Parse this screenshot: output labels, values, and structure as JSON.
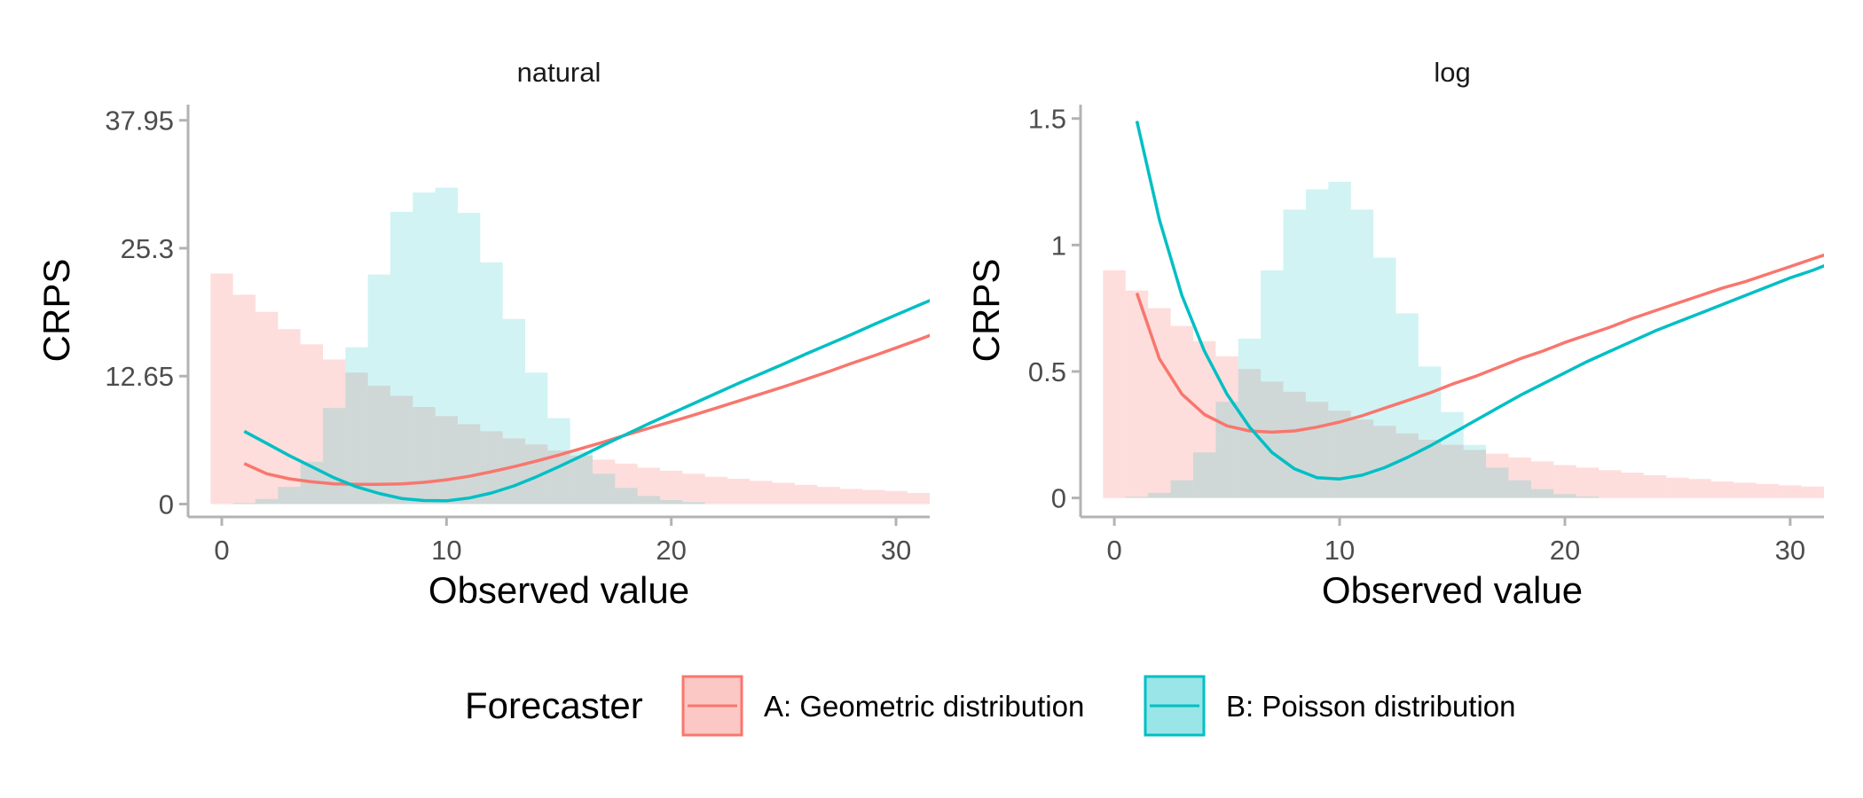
{
  "chart_data": [
    {
      "type": "line",
      "title": "natural",
      "xlabel": "Observed value",
      "ylabel": "CRPS",
      "xlim": [
        -1.5,
        31.5
      ],
      "ylim": [
        -1.27,
        39.5
      ],
      "xticks": [
        0,
        10,
        20,
        30
      ],
      "yticks": [
        0,
        12.65,
        25.3,
        37.95
      ],
      "ytick_labels": [
        "0",
        "12.65",
        "25.3",
        "37.95"
      ],
      "grid": false,
      "series": [
        {
          "name": "A: Geometric distribution",
          "color": "#F8766D",
          "x": [
            1,
            2,
            3,
            4,
            5,
            6,
            7,
            8,
            9,
            10,
            11,
            12,
            13,
            14,
            15,
            16,
            17,
            18,
            19,
            20,
            21,
            22,
            23,
            24,
            25,
            26,
            27,
            28,
            29,
            30,
            31,
            32
          ],
          "values": [
            4.0,
            3.0,
            2.5,
            2.2,
            2.0,
            1.95,
            1.95,
            2.0,
            2.15,
            2.4,
            2.75,
            3.2,
            3.7,
            4.25,
            4.85,
            5.5,
            6.15,
            6.85,
            7.5,
            8.15,
            8.8,
            9.5,
            10.2,
            10.9,
            11.6,
            12.35,
            13.1,
            13.9,
            14.65,
            15.45,
            16.25,
            17.1
          ]
        },
        {
          "name": "B: Poisson distribution",
          "color": "#00BFC4",
          "x": [
            1,
            2,
            3,
            4,
            5,
            6,
            7,
            8,
            9,
            10,
            11,
            12,
            13,
            14,
            15,
            16,
            17,
            18,
            19,
            20,
            21,
            22,
            23,
            24,
            25,
            26,
            27,
            28,
            29,
            30,
            31,
            32
          ],
          "values": [
            7.2,
            6.0,
            4.8,
            3.7,
            2.6,
            1.7,
            1.05,
            0.55,
            0.35,
            0.33,
            0.6,
            1.1,
            1.8,
            2.7,
            3.7,
            4.75,
            5.85,
            6.9,
            7.95,
            8.95,
            9.95,
            10.95,
            11.95,
            12.9,
            13.85,
            14.85,
            15.8,
            16.75,
            17.75,
            18.7,
            19.65,
            20.6
          ]
        }
      ],
      "histograms": [
        {
          "name": "A: Geometric distribution",
          "color": "#F8766D",
          "x": [
            0,
            1,
            2,
            3,
            4,
            5,
            6,
            7,
            8,
            9,
            10,
            11,
            12,
            13,
            14,
            15,
            16,
            17,
            18,
            19,
            20,
            21,
            22,
            23,
            24,
            25,
            26,
            27,
            28,
            29,
            30,
            31
          ],
          "values": [
            22.8,
            20.7,
            19.0,
            17.3,
            15.8,
            14.3,
            13.0,
            11.7,
            10.7,
            9.6,
            8.7,
            7.9,
            7.2,
            6.5,
            5.9,
            5.3,
            4.8,
            4.4,
            4.0,
            3.6,
            3.3,
            3.0,
            2.7,
            2.5,
            2.3,
            2.1,
            1.9,
            1.7,
            1.5,
            1.4,
            1.3,
            1.1
          ]
        },
        {
          "name": "B: Poisson distribution",
          "color": "#00BFC4",
          "x": [
            0,
            1,
            2,
            3,
            4,
            5,
            6,
            7,
            8,
            9,
            10,
            11,
            12,
            13,
            14,
            15,
            16,
            17,
            18,
            19,
            20,
            21
          ],
          "values": [
            0,
            0.1,
            0.5,
            1.7,
            4.2,
            9.5,
            15.5,
            22.7,
            28.9,
            30.8,
            31.3,
            28.8,
            23.9,
            18.3,
            13.0,
            8.5,
            5.2,
            3.0,
            1.6,
            0.8,
            0.4,
            0.2
          ]
        }
      ]
    },
    {
      "type": "line",
      "title": "log",
      "xlabel": "Observed value",
      "ylabel": "CRPS",
      "xlim": [
        -1.5,
        31.5
      ],
      "ylim": [
        -0.075,
        1.555
      ],
      "xticks": [
        0,
        10,
        20,
        30
      ],
      "yticks": [
        0,
        0.5,
        1,
        1.5
      ],
      "ytick_labels": [
        "0",
        "0.5",
        "1",
        "1.5"
      ],
      "grid": false,
      "series": [
        {
          "name": "A: Geometric distribution",
          "color": "#F8766D",
          "x": [
            1,
            2,
            3,
            4,
            5,
            6,
            7,
            8,
            9,
            10,
            11,
            12,
            13,
            14,
            15,
            16,
            17,
            18,
            19,
            20,
            21,
            22,
            23,
            24,
            25,
            26,
            27,
            28,
            29,
            30,
            31,
            32
          ],
          "values": [
            0.81,
            0.55,
            0.41,
            0.33,
            0.285,
            0.265,
            0.26,
            0.265,
            0.28,
            0.3,
            0.325,
            0.355,
            0.385,
            0.415,
            0.45,
            0.48,
            0.515,
            0.55,
            0.58,
            0.615,
            0.645,
            0.675,
            0.71,
            0.74,
            0.77,
            0.8,
            0.83,
            0.855,
            0.885,
            0.915,
            0.945,
            0.975
          ]
        },
        {
          "name": "B: Poisson distribution",
          "color": "#00BFC4",
          "x": [
            1,
            2,
            3,
            4,
            5,
            6,
            7,
            8,
            9,
            10,
            11,
            12,
            13,
            14,
            15,
            16,
            17,
            18,
            19,
            20,
            21,
            22,
            23,
            24,
            25,
            26,
            27,
            28,
            29,
            30,
            31,
            32
          ],
          "values": [
            1.49,
            1.1,
            0.8,
            0.58,
            0.41,
            0.28,
            0.18,
            0.115,
            0.08,
            0.075,
            0.09,
            0.12,
            0.16,
            0.205,
            0.255,
            0.305,
            0.355,
            0.405,
            0.45,
            0.495,
            0.54,
            0.58,
            0.62,
            0.66,
            0.695,
            0.73,
            0.765,
            0.8,
            0.835,
            0.87,
            0.9,
            0.935
          ]
        }
      ],
      "histograms": [
        {
          "name": "A: Geometric distribution",
          "color": "#F8766D",
          "x": [
            0,
            1,
            2,
            3,
            4,
            5,
            6,
            7,
            8,
            9,
            10,
            11,
            12,
            13,
            14,
            15,
            16,
            17,
            18,
            19,
            20,
            21,
            22,
            23,
            24,
            25,
            26,
            27,
            28,
            29,
            30,
            31
          ],
          "values": [
            0.9,
            0.82,
            0.75,
            0.68,
            0.62,
            0.56,
            0.51,
            0.46,
            0.42,
            0.38,
            0.345,
            0.31,
            0.285,
            0.255,
            0.23,
            0.21,
            0.19,
            0.175,
            0.16,
            0.145,
            0.13,
            0.12,
            0.11,
            0.1,
            0.09,
            0.08,
            0.075,
            0.065,
            0.06,
            0.055,
            0.05,
            0.045
          ]
        },
        {
          "name": "B: Poisson distribution",
          "color": "#00BFC4",
          "x": [
            0,
            1,
            2,
            3,
            4,
            5,
            6,
            7,
            8,
            9,
            10,
            11,
            12,
            13,
            14,
            15,
            16,
            17,
            18,
            19,
            20,
            21
          ],
          "values": [
            0,
            0.005,
            0.02,
            0.07,
            0.18,
            0.38,
            0.63,
            0.9,
            1.14,
            1.22,
            1.25,
            1.14,
            0.95,
            0.73,
            0.52,
            0.34,
            0.21,
            0.12,
            0.07,
            0.035,
            0.015,
            0.006
          ]
        }
      ]
    }
  ],
  "legend": {
    "title": "Forecaster",
    "items": [
      {
        "label": "A: Geometric distribution",
        "color": "#F8766D"
      },
      {
        "label": "B: Poisson distribution",
        "color": "#00BFC4"
      }
    ]
  }
}
